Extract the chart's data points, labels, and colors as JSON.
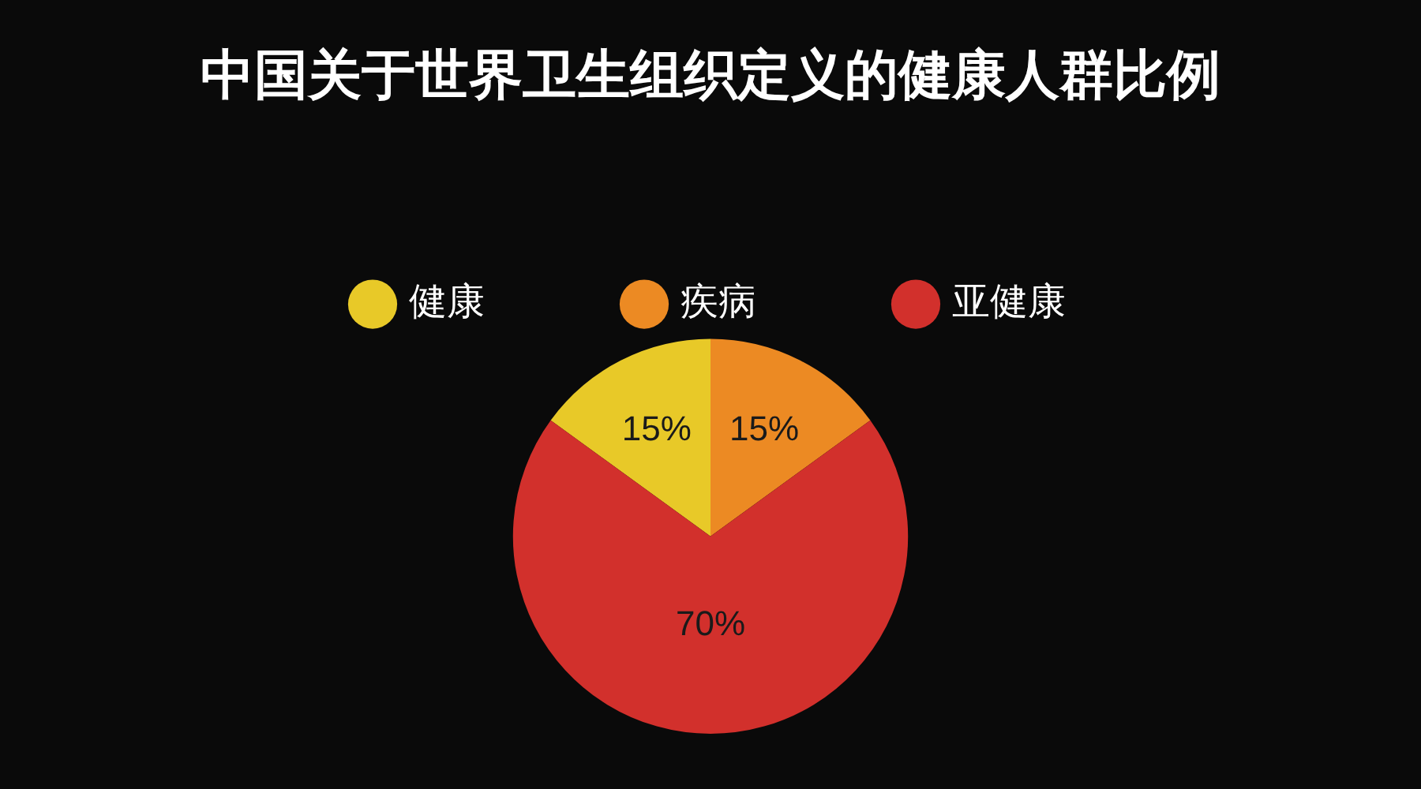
{
  "chart_data": {
    "type": "pie",
    "title": "中国关于世界卫生组织定义的健康人群比例",
    "categories": [
      "健康",
      "疾病",
      "亚健康"
    ],
    "values": [
      15,
      15,
      70
    ],
    "value_labels": [
      "15%",
      "15%",
      "70%"
    ],
    "colors": [
      "#e8c928",
      "#ec8a23",
      "#d2302c"
    ],
    "legend": "top"
  }
}
